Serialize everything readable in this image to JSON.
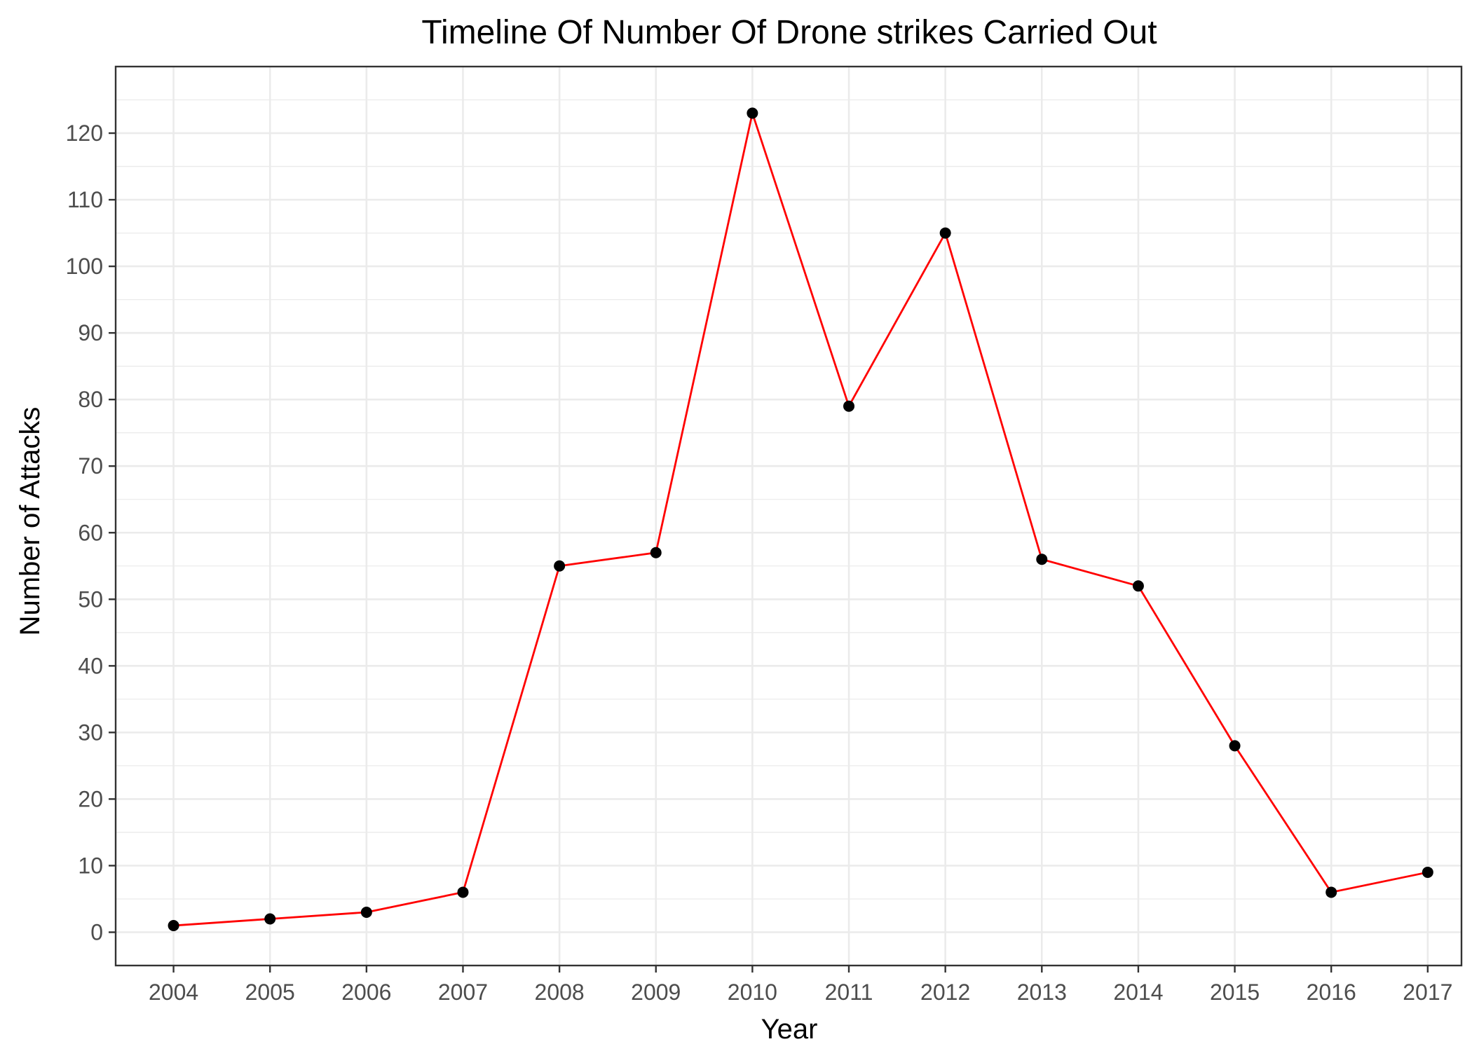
{
  "chart_data": {
    "type": "line",
    "title": "Timeline Of Number Of Drone strikes Carried Out",
    "xlabel": "Year",
    "ylabel": "Number of Attacks",
    "x": [
      2004,
      2005,
      2006,
      2007,
      2008,
      2009,
      2010,
      2011,
      2012,
      2013,
      2014,
      2015,
      2016,
      2017
    ],
    "series": [
      {
        "values": [
          1,
          2,
          3,
          6,
          55,
          57,
          123,
          79,
          105,
          56,
          52,
          28,
          6,
          9
        ]
      }
    ],
    "xlim": [
      2003.4,
      2017.35
    ],
    "ylim": [
      -5,
      130
    ],
    "y_ticks": [
      0,
      10,
      20,
      30,
      40,
      50,
      60,
      70,
      80,
      90,
      100,
      110,
      120
    ],
    "grid": true,
    "legend": "none",
    "colors": {
      "line": "#ff0000",
      "points": "#000000",
      "grid": "#ebebeb",
      "border": "#333333"
    }
  }
}
